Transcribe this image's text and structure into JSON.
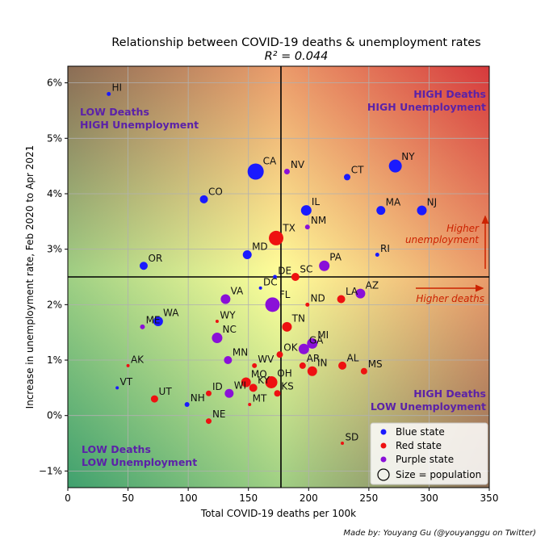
{
  "chart_data": {
    "type": "scatter",
    "title": "Relationship between COVID-19 deaths & unemployment rates",
    "subtitle": "R² = 0.044",
    "xlabel": "Total COVID-19 deaths per 100k",
    "ylabel": "Increase in unemployment rate, Feb 2020 to Apr 2021",
    "xlim": [
      0,
      350
    ],
    "ylim": [
      -1.3,
      6.3
    ],
    "x_ticks": [
      0,
      50,
      100,
      150,
      200,
      250,
      300,
      350
    ],
    "y_ticks": [
      -1,
      0,
      1,
      2,
      3,
      4,
      5,
      6
    ],
    "y_tick_labels": [
      "−1%",
      "0%",
      "1%",
      "2%",
      "3%",
      "4%",
      "5%",
      "6%"
    ],
    "grid": true,
    "x_divider": 177,
    "y_divider": 2.5,
    "quadrant_labels": {
      "top_left": [
        "LOW Deaths",
        "HIGH Unemployment"
      ],
      "top_right": [
        "HIGH Deaths",
        "HIGH Unemployment"
      ],
      "bottom_left": [
        "LOW Deaths",
        "LOW Unemployment"
      ],
      "bottom_right": [
        "HIGH Deaths",
        "LOW Unemployment"
      ]
    },
    "annotations": {
      "higher_unemployment": [
        "Higher",
        "unemployment"
      ],
      "higher_deaths": "Higher deaths"
    },
    "colors": {
      "blue": "#1a1aff",
      "red": "#ee1111",
      "purple": "#8a10d8",
      "quadrant_text": "#5b22a8",
      "arrow": "#cc2200"
    },
    "legend": {
      "position": "bottom-right",
      "items": [
        {
          "label": "Blue state",
          "color": "#1a1aff"
        },
        {
          "label": "Red state",
          "color": "#ee1111"
        },
        {
          "label": "Purple state",
          "color": "#8a10d8"
        },
        {
          "label": "Size = population",
          "color": "none"
        }
      ]
    },
    "points": [
      {
        "state": "HI",
        "x": 34,
        "y": 5.8,
        "party": "blue",
        "size": 2.5
      },
      {
        "state": "CA",
        "x": 156,
        "y": 4.4,
        "party": "blue",
        "size": 10
      },
      {
        "state": "NV",
        "x": 182,
        "y": 4.4,
        "party": "purple",
        "size": 3.5
      },
      {
        "state": "CT",
        "x": 232,
        "y": 4.3,
        "party": "blue",
        "size": 4
      },
      {
        "state": "NY",
        "x": 272,
        "y": 4.5,
        "party": "blue",
        "size": 8
      },
      {
        "state": "CO",
        "x": 113,
        "y": 3.9,
        "party": "blue",
        "size": 5
      },
      {
        "state": "IL",
        "x": 198,
        "y": 3.7,
        "party": "blue",
        "size": 6.5
      },
      {
        "state": "MA",
        "x": 260,
        "y": 3.7,
        "party": "blue",
        "size": 5.5
      },
      {
        "state": "NJ",
        "x": 294,
        "y": 3.7,
        "party": "blue",
        "size": 6
      },
      {
        "state": "NM",
        "x": 199,
        "y": 3.4,
        "party": "purple",
        "size": 3
      },
      {
        "state": "TX",
        "x": 173,
        "y": 3.2,
        "party": "red",
        "size": 9
      },
      {
        "state": "MD",
        "x": 149,
        "y": 2.9,
        "party": "blue",
        "size": 5.5
      },
      {
        "state": "RI",
        "x": 257,
        "y": 2.9,
        "party": "blue",
        "size": 2.5
      },
      {
        "state": "OR",
        "x": 63,
        "y": 2.7,
        "party": "blue",
        "size": 5
      },
      {
        "state": "PA",
        "x": 213,
        "y": 2.7,
        "party": "purple",
        "size": 6.5
      },
      {
        "state": "DE",
        "x": 172,
        "y": 2.5,
        "party": "blue",
        "size": 2.5
      },
      {
        "state": "SC",
        "x": 189,
        "y": 2.5,
        "party": "red",
        "size": 5
      },
      {
        "state": "DC",
        "x": 160,
        "y": 2.3,
        "party": "blue",
        "size": 2
      },
      {
        "state": "FL",
        "x": 170,
        "y": 2.0,
        "party": "purple",
        "size": 9
      },
      {
        "state": "VA",
        "x": 131,
        "y": 2.1,
        "party": "purple",
        "size": 6
      },
      {
        "state": "LA",
        "x": 227,
        "y": 2.1,
        "party": "red",
        "size": 5
      },
      {
        "state": "AZ",
        "x": 243,
        "y": 2.2,
        "party": "purple",
        "size": 6
      },
      {
        "state": "ND",
        "x": 199,
        "y": 2.0,
        "party": "red",
        "size": 2.5
      },
      {
        "state": "WA",
        "x": 75,
        "y": 1.7,
        "party": "blue",
        "size": 6
      },
      {
        "state": "ME",
        "x": 62,
        "y": 1.6,
        "party": "purple",
        "size": 3
      },
      {
        "state": "WY",
        "x": 124,
        "y": 1.7,
        "party": "red",
        "size": 2
      },
      {
        "state": "NC",
        "x": 124,
        "y": 1.4,
        "party": "purple",
        "size": 6.5
      },
      {
        "state": "TN",
        "x": 182,
        "y": 1.6,
        "party": "red",
        "size": 6
      },
      {
        "state": "MI",
        "x": 203,
        "y": 1.3,
        "party": "purple",
        "size": 6.5
      },
      {
        "state": "GA",
        "x": 196,
        "y": 1.2,
        "party": "purple",
        "size": 6.5
      },
      {
        "state": "OK",
        "x": 176,
        "y": 1.1,
        "party": "red",
        "size": 4
      },
      {
        "state": "AK",
        "x": 50,
        "y": 0.9,
        "party": "red",
        "size": 2
      },
      {
        "state": "MN",
        "x": 133,
        "y": 1.0,
        "party": "purple",
        "size": 5
      },
      {
        "state": "WV",
        "x": 155,
        "y": 0.9,
        "party": "red",
        "size": 3
      },
      {
        "state": "AR",
        "x": 195,
        "y": 0.9,
        "party": "red",
        "size": 4
      },
      {
        "state": "IN",
        "x": 203,
        "y": 0.8,
        "party": "red",
        "size": 6
      },
      {
        "state": "AL",
        "x": 228,
        "y": 0.9,
        "party": "red",
        "size": 5
      },
      {
        "state": "MS",
        "x": 246,
        "y": 0.8,
        "party": "red",
        "size": 4
      },
      {
        "state": "VT",
        "x": 41,
        "y": 0.5,
        "party": "blue",
        "size": 2
      },
      {
        "state": "UT",
        "x": 72,
        "y": 0.3,
        "party": "red",
        "size": 4.5
      },
      {
        "state": "NH",
        "x": 99,
        "y": 0.2,
        "party": "blue",
        "size": 3
      },
      {
        "state": "ID",
        "x": 117,
        "y": 0.4,
        "party": "red",
        "size": 3.5
      },
      {
        "state": "WI",
        "x": 134,
        "y": 0.4,
        "party": "purple",
        "size": 5.5
      },
      {
        "state": "MO",
        "x": 148,
        "y": 0.6,
        "party": "red",
        "size": 6
      },
      {
        "state": "KY",
        "x": 154,
        "y": 0.5,
        "party": "red",
        "size": 5
      },
      {
        "state": "MT",
        "x": 151,
        "y": 0.2,
        "party": "red",
        "size": 2
      },
      {
        "state": "OH",
        "x": 169,
        "y": 0.6,
        "party": "red",
        "size": 7.5
      },
      {
        "state": "KS",
        "x": 174,
        "y": 0.4,
        "party": "red",
        "size": 4
      },
      {
        "state": "NE",
        "x": 117,
        "y": -0.1,
        "party": "red",
        "size": 3.5
      },
      {
        "state": "SD",
        "x": 228,
        "y": -0.5,
        "party": "red",
        "size": 2
      }
    ]
  },
  "credit": "Made by: Youyang Gu (@youyanggu on Twitter)"
}
